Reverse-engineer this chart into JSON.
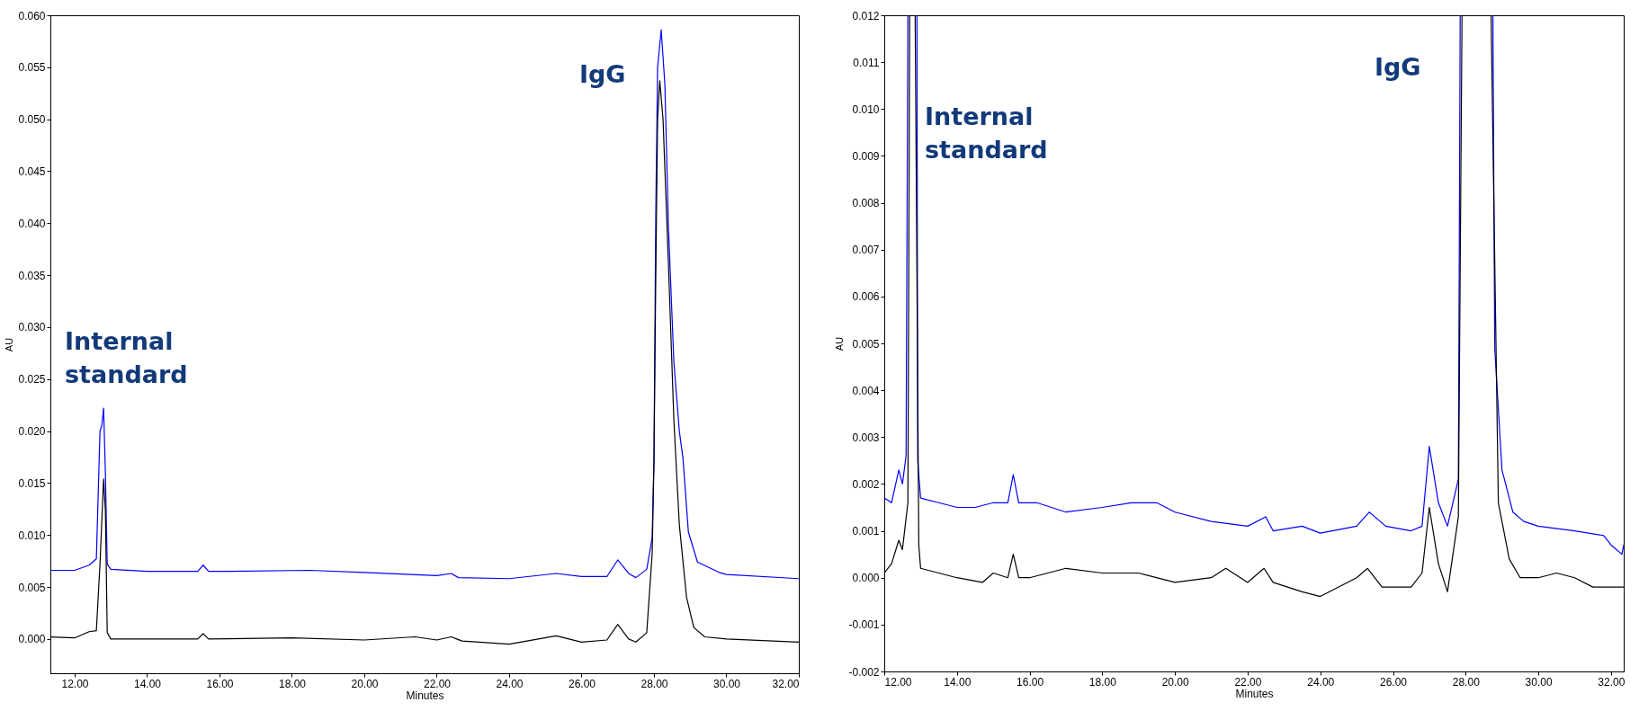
{
  "chart_data": [
    {
      "type": "line",
      "xlabel": "Minutes",
      "ylabel": "AU",
      "xlim": [
        11.33,
        32.0
      ],
      "ylim": [
        -0.0033,
        0.06
      ],
      "xticks": [
        {
          "value": 12,
          "label": "12.00"
        },
        {
          "value": 14,
          "label": "14.00"
        },
        {
          "value": 16,
          "label": "16.00"
        },
        {
          "value": 18,
          "label": "18.00"
        },
        {
          "value": 20,
          "label": "20.00"
        },
        {
          "value": 22,
          "label": "22.00"
        },
        {
          "value": 24,
          "label": "24.00"
        },
        {
          "value": 26,
          "label": "26.00"
        },
        {
          "value": 28,
          "label": "28.00"
        },
        {
          "value": 30,
          "label": "30.00"
        },
        {
          "value": 32,
          "label": "32.00"
        }
      ],
      "yticks": [
        {
          "value": 0,
          "label": "0.000"
        },
        0.005,
        {
          "value": 0.01,
          "label": "0.010"
        },
        0.015,
        {
          "value": 0.02,
          "label": "0.020"
        },
        0.025,
        {
          "value": 0.03,
          "label": "0.030"
        },
        0.035,
        {
          "value": 0.04,
          "label": "0.040"
        },
        0.045,
        {
          "value": 0.05,
          "label": "0.050"
        },
        0.055,
        {
          "value": 0.06,
          "label": "0.060"
        }
      ],
      "annotations": [
        "Internal standard",
        "IgG"
      ],
      "grid": false,
      "legend": false,
      "line_style": "solid",
      "marker": "none",
      "series": [
        {
          "color": "#0000ff",
          "x": [
            11.33,
            12.0,
            12.4,
            12.6,
            12.7,
            12.75,
            12.8,
            12.85,
            12.9,
            13.0,
            14.0,
            15.4,
            15.55,
            15.7,
            16.0,
            18.5,
            20.0,
            22.0,
            22.4,
            22.6,
            24.0,
            25.3,
            26.0,
            26.7,
            27.0,
            27.3,
            27.5,
            27.8,
            27.95,
            28.0,
            28.05,
            28.1,
            28.2,
            28.3,
            28.4,
            28.55,
            28.7,
            28.8,
            28.95,
            29.2,
            29.8,
            30.0,
            32.0
          ],
          "values": [
            0.0066,
            0.0066,
            0.0071,
            0.0077,
            0.02,
            0.0205,
            0.0222,
            0.0159,
            0.0072,
            0.0067,
            0.0065,
            0.0065,
            0.0071,
            0.0065,
            0.0065,
            0.0066,
            0.0064,
            0.0061,
            0.0063,
            0.0059,
            0.0058,
            0.0063,
            0.006,
            0.006,
            0.0076,
            0.0063,
            0.0059,
            0.0067,
            0.0097,
            0.0174,
            0.041,
            0.055,
            0.0586,
            0.0534,
            0.0396,
            0.0266,
            0.02,
            0.0174,
            0.0103,
            0.0074,
            0.0064,
            0.0062,
            0.0058
          ]
        },
        {
          "color": "#000000",
          "x": [
            11.33,
            12.0,
            12.4,
            12.6,
            12.7,
            12.8,
            12.85,
            12.9,
            13.0,
            15.4,
            15.55,
            15.7,
            18.0,
            20.0,
            21.4,
            22.0,
            22.4,
            22.7,
            24.0,
            25.3,
            26.0,
            26.7,
            27.0,
            27.3,
            27.5,
            27.8,
            27.95,
            28.0,
            28.05,
            28.1,
            28.16,
            28.25,
            28.4,
            28.55,
            28.7,
            28.9,
            29.1,
            29.4,
            30.0,
            32.0
          ],
          "values": [
            0.0002,
            0.0001,
            0.0007,
            0.0008,
            0.0072,
            0.0154,
            0.0123,
            0.0006,
            0.0,
            0.0,
            0.0005,
            0.0,
            0.0001,
            -0.0001,
            0.0002,
            -0.0001,
            0.0002,
            -0.0002,
            -0.0005,
            0.0003,
            -0.0003,
            -0.0001,
            0.0014,
            0.0,
            -0.0003,
            0.0006,
            0.0082,
            0.017,
            0.035,
            0.05,
            0.0537,
            0.05,
            0.036,
            0.021,
            0.011,
            0.004,
            0.0011,
            0.0002,
            0.0,
            -0.0003
          ]
        }
      ]
    },
    {
      "type": "line",
      "xlabel": "Minutes",
      "ylabel": "AU",
      "xlim": [
        12.0,
        32.35
      ],
      "ylim": [
        -0.002,
        0.012
      ],
      "xticks": [
        {
          "value": 12,
          "label": "12.00"
        },
        {
          "value": 14,
          "label": "14.00"
        },
        {
          "value": 16,
          "label": "16.00"
        },
        {
          "value": 18,
          "label": "18.00"
        },
        {
          "value": 20,
          "label": "20.00"
        },
        {
          "value": 22,
          "label": "22.00"
        },
        {
          "value": 24,
          "label": "24.00"
        },
        {
          "value": 26,
          "label": "26.00"
        },
        {
          "value": 28,
          "label": "28.00"
        },
        {
          "value": 30,
          "label": "30.00"
        },
        {
          "value": 32,
          "label": "32.00"
        }
      ],
      "yticks": [
        -0.002,
        -0.001,
        {
          "value": 0,
          "label": "0.000"
        },
        0.001,
        0.002,
        0.003,
        0.004,
        0.005,
        0.006,
        0.007,
        0.008,
        0.009,
        {
          "value": 0.01,
          "label": "0.010"
        },
        0.011,
        0.012
      ],
      "annotations": [
        "Internal standard",
        "IgG"
      ],
      "grid": false,
      "legend": false,
      "line_style": "solid",
      "marker": "none",
      "series": [
        {
          "color": "#0000ff",
          "x": [
            12.0,
            12.2,
            12.4,
            12.5,
            12.6,
            12.65,
            12.75,
            12.9,
            12.92,
            13.0,
            13.5,
            14.0,
            14.5,
            15.0,
            15.4,
            15.55,
            15.7,
            16.2,
            17.0,
            18.0,
            18.8,
            19.5,
            20.0,
            21.0,
            22.0,
            22.5,
            22.7,
            23.5,
            24.0,
            25.0,
            25.35,
            25.8,
            26.5,
            26.8,
            27.0,
            27.25,
            27.5,
            27.8,
            27.85,
            28.3,
            28.75,
            28.8,
            29.0,
            29.3,
            29.6,
            30.0,
            31.0,
            31.8,
            32.0,
            32.3,
            32.35
          ],
          "values": [
            0.0017,
            0.0016,
            0.0023,
            0.002,
            0.0026,
            0.012,
            null,
            0.012,
            0.0025,
            0.0017,
            0.0016,
            0.0015,
            0.0015,
            0.0016,
            0.0016,
            0.0022,
            0.0016,
            0.0016,
            0.0014,
            0.0015,
            0.0016,
            0.0016,
            0.0014,
            0.0012,
            0.0011,
            0.0013,
            0.001,
            0.0011,
            0.00095,
            0.0011,
            0.0014,
            0.0011,
            0.001,
            0.0011,
            0.0028,
            0.0016,
            0.0011,
            0.0021,
            0.012,
            null,
            0.012,
            0.0049,
            0.0023,
            0.0014,
            0.0012,
            0.0011,
            0.001,
            0.0009,
            0.0007,
            0.0005,
            0.0007
          ]
        },
        {
          "color": "#000000",
          "x": [
            12.0,
            12.2,
            12.4,
            12.5,
            12.65,
            12.7,
            12.78,
            12.85,
            12.95,
            13.0,
            13.5,
            14.0,
            14.7,
            15.0,
            15.4,
            15.55,
            15.7,
            16.0,
            17.0,
            18.0,
            19.0,
            20.0,
            21.0,
            21.4,
            22.0,
            22.45,
            22.7,
            23.5,
            24.0,
            25.0,
            25.3,
            25.7,
            26.5,
            26.8,
            27.0,
            27.25,
            27.5,
            27.8,
            27.9,
            28.3,
            28.7,
            28.9,
            29.2,
            29.5,
            30.0,
            30.5,
            31.0,
            31.5,
            32.0,
            32.35
          ],
          "values": [
            0.0001,
            0.0003,
            0.0008,
            0.0006,
            0.0016,
            0.012,
            null,
            0.012,
            0.0007,
            0.0002,
            0.0001,
            0.0,
            -0.0001,
            0.0001,
            0.0,
            0.0005,
            0.0,
            0.0,
            0.0002,
            0.0001,
            0.0001,
            -0.0001,
            0.0,
            0.0002,
            -0.0001,
            0.0002,
            -0.0001,
            -0.0003,
            -0.0004,
            0.0,
            0.0002,
            -0.0002,
            -0.0002,
            0.0001,
            0.0015,
            0.0003,
            -0.0003,
            0.0013,
            0.012,
            null,
            0.012,
            0.0016,
            0.0004,
            0.0,
            0.0,
            0.0001,
            0.0,
            -0.0002,
            -0.0002,
            -0.0002
          ]
        }
      ]
    }
  ]
}
